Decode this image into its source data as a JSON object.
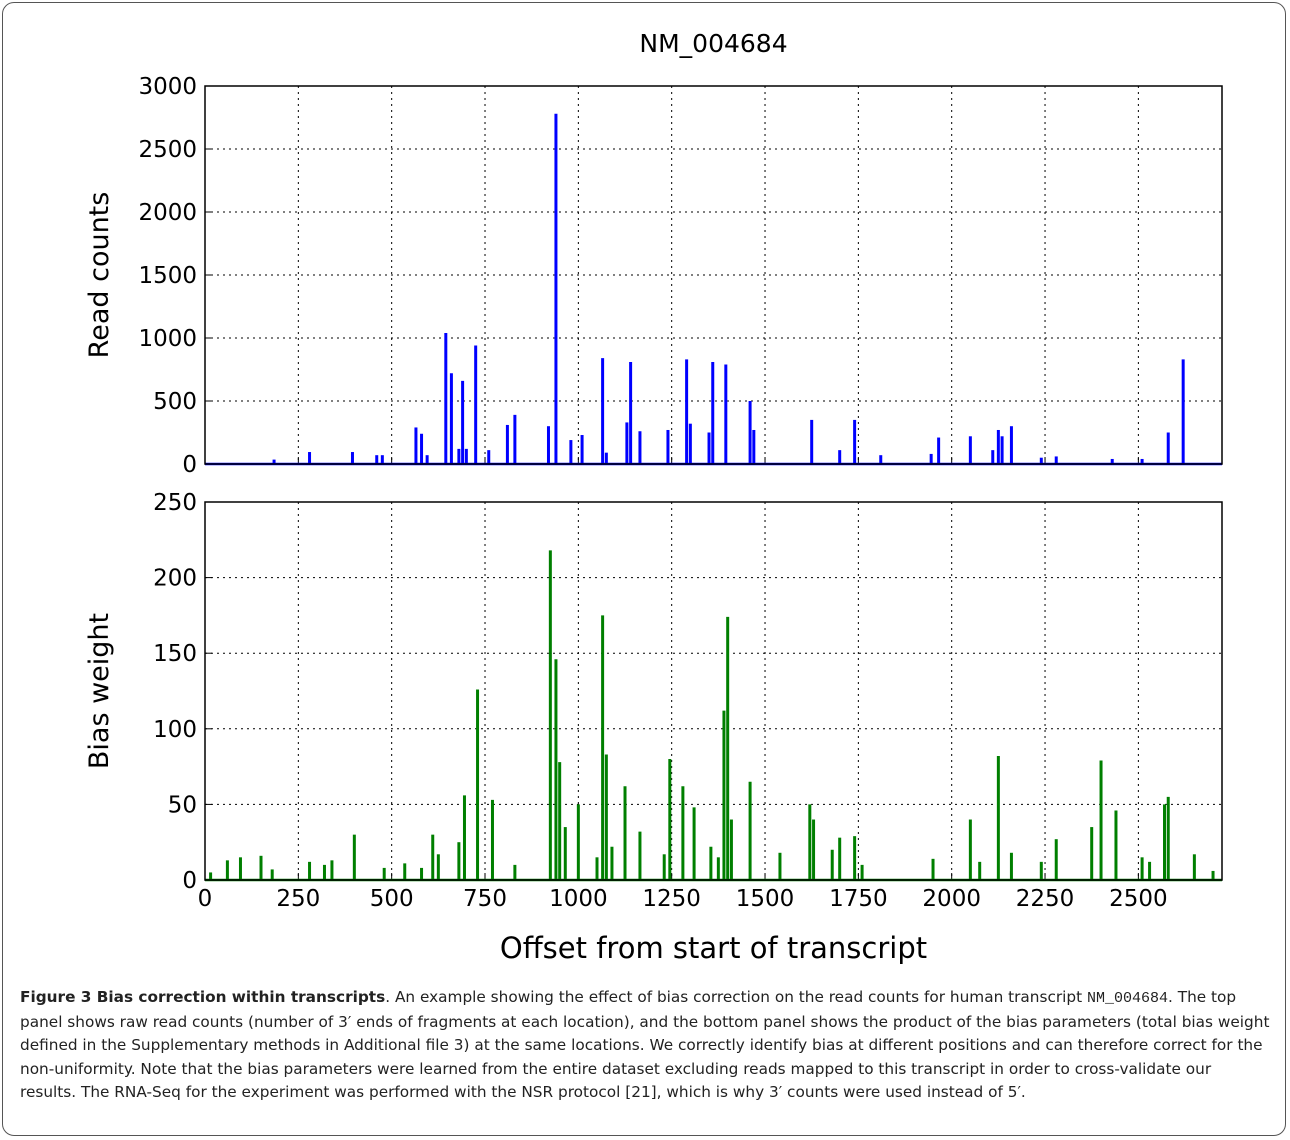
{
  "chart_data": [
    {
      "type": "stem",
      "title": "NM_004684",
      "ylabel": "Read counts",
      "color": "#0000ff",
      "grid": true,
      "xtick_labels": false,
      "xlim": [
        0,
        2724
      ],
      "xticks": [
        0,
        250,
        500,
        750,
        1000,
        1250,
        1500,
        1750,
        2000,
        2250,
        2500
      ],
      "ylim": [
        0,
        3000
      ],
      "yticks": [
        0,
        500,
        1000,
        1500,
        2000,
        2500,
        3000
      ],
      "x": [
        185,
        280,
        395,
        460,
        475,
        565,
        580,
        595,
        645,
        660,
        680,
        690,
        700,
        725,
        760,
        810,
        830,
        920,
        940,
        980,
        1010,
        1065,
        1075,
        1130,
        1140,
        1165,
        1240,
        1290,
        1300,
        1350,
        1360,
        1395,
        1460,
        1470,
        1625,
        1700,
        1740,
        1810,
        1945,
        1965,
        2050,
        2110,
        2125,
        2135,
        2160,
        2240,
        2280,
        2430,
        2510,
        2580,
        2620
      ],
      "values": [
        35,
        95,
        95,
        70,
        70,
        290,
        240,
        70,
        1040,
        720,
        120,
        660,
        120,
        940,
        110,
        310,
        390,
        300,
        2780,
        190,
        230,
        840,
        90,
        330,
        810,
        260,
        270,
        830,
        320,
        250,
        810,
        790,
        500,
        270,
        350,
        110,
        350,
        70,
        80,
        210,
        220,
        110,
        270,
        220,
        300,
        50,
        60,
        40,
        40,
        250,
        830
      ]
    },
    {
      "type": "stem",
      "ylabel": "Bias weight",
      "xlabel": "Offset from start of transcript",
      "color": "#007f00",
      "grid": true,
      "xtick_labels": true,
      "xlim": [
        0,
        2724
      ],
      "xticks": [
        0,
        250,
        500,
        750,
        1000,
        1250,
        1500,
        1750,
        2000,
        2250,
        2500
      ],
      "ylim": [
        0,
        250
      ],
      "yticks": [
        0,
        50,
        100,
        150,
        200,
        250
      ],
      "x": [
        15,
        60,
        95,
        150,
        180,
        280,
        320,
        340,
        400,
        480,
        535,
        580,
        610,
        625,
        680,
        695,
        730,
        770,
        830,
        925,
        940,
        950,
        965,
        1000,
        1050,
        1065,
        1075,
        1090,
        1125,
        1165,
        1230,
        1245,
        1280,
        1310,
        1355,
        1375,
        1390,
        1400,
        1410,
        1460,
        1540,
        1620,
        1630,
        1680,
        1700,
        1740,
        1760,
        1950,
        2050,
        2075,
        2125,
        2160,
        2240,
        2280,
        2375,
        2400,
        2440,
        2510,
        2530,
        2570,
        2580,
        2650,
        2700
      ],
      "values": [
        5,
        13,
        15,
        16,
        7,
        12,
        10,
        13,
        30,
        8,
        11,
        8,
        30,
        17,
        25,
        56,
        126,
        53,
        10,
        218,
        146,
        78,
        35,
        50,
        15,
        175,
        83,
        22,
        62,
        32,
        17,
        80,
        62,
        48,
        22,
        15,
        112,
        174,
        40,
        65,
        18,
        50,
        40,
        20,
        28,
        29,
        10,
        14,
        40,
        12,
        82,
        18,
        12,
        27,
        35,
        79,
        46,
        15,
        12,
        50,
        55,
        17,
        6
      ]
    }
  ],
  "caption": {
    "bold": "Figure 3 Bias correction within transcripts",
    "text1": ". An example showing the effect of bias correction on the read counts for human transcript ",
    "code": "NM_004684",
    "text2": ". The top panel shows raw read counts (number of 3′ ends of fragments at each location), and the bottom panel shows the product of the bias parameters (total bias weight defined in the Supplementary methods in Additional file 3) at the same locations. We correctly identify bias at different positions and can therefore correct for the non-uniformity. Note that the bias parameters were learned from the entire dataset excluding reads mapped to this transcript in order to cross-validate our results. The RNA-Seq for the experiment was performed with the NSR protocol [21], which is why 3′ counts were used instead of 5′."
  }
}
